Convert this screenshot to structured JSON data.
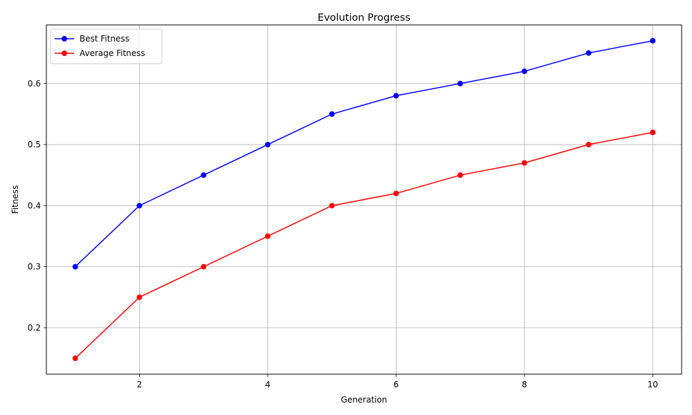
{
  "chart_data": {
    "type": "line",
    "title": "Evolution Progress",
    "xlabel": "Generation",
    "ylabel": "Fitness",
    "x": [
      1,
      2,
      3,
      4,
      5,
      6,
      7,
      8,
      9,
      10
    ],
    "xlim": [
      0.55,
      10.45
    ],
    "ylim": [
      0.124,
      0.696
    ],
    "xticks": [
      2,
      4,
      6,
      8,
      10
    ],
    "yticks": [
      0.2,
      0.3,
      0.4,
      0.5,
      0.6
    ],
    "xtick_labels": [
      "2",
      "4",
      "6",
      "8",
      "10"
    ],
    "ytick_labels": [
      "0.2",
      "0.3",
      "0.4",
      "0.5",
      "0.6"
    ],
    "grid": true,
    "legend_position": "top-left",
    "series": [
      {
        "name": "Best Fitness",
        "color": "#0000ff",
        "marker": "circle",
        "values": [
          0.3,
          0.4,
          0.45,
          0.5,
          0.55,
          0.58,
          0.6,
          0.62,
          0.65,
          0.67
        ]
      },
      {
        "name": "Average Fitness",
        "color": "#ff0000",
        "marker": "circle",
        "values": [
          0.15,
          0.25,
          0.3,
          0.35,
          0.4,
          0.42,
          0.45,
          0.47,
          0.5,
          0.52
        ]
      }
    ]
  }
}
